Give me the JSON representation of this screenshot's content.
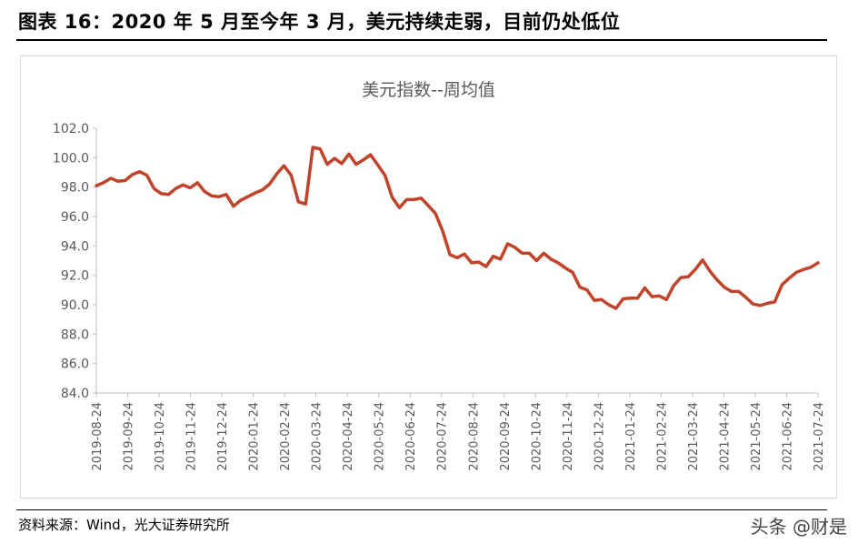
{
  "header": {
    "title": "图表 16：2020 年 5 月至今年 3 月，美元持续走弱，目前仍处低位"
  },
  "footer": {
    "source": "资料来源：Wind，光大证券研究所",
    "watermark": "头条 @财是"
  },
  "chart_data": {
    "type": "line",
    "title": "美元指数--周均值",
    "xlabel": "",
    "ylabel": "",
    "ylim": [
      84,
      102
    ],
    "y_ticks": [
      "84.0",
      "86.0",
      "88.0",
      "90.0",
      "92.0",
      "94.0",
      "96.0",
      "98.0",
      "100.0",
      "102.0"
    ],
    "x_ticks": [
      "2019-08-24",
      "2019-09-24",
      "2019-10-24",
      "2019-11-24",
      "2019-12-24",
      "2020-01-24",
      "2020-02-24",
      "2020-03-24",
      "2020-04-24",
      "2020-05-24",
      "2020-06-24",
      "2020-07-24",
      "2020-08-24",
      "2020-09-24",
      "2020-10-24",
      "2020-11-24",
      "2020-12-24",
      "2021-01-24",
      "2021-02-24",
      "2021-03-24",
      "2021-04-24",
      "2021-05-24",
      "2021-06-24",
      "2021-07-24"
    ],
    "grid": false,
    "legend": "none",
    "line_color": "#c0432a",
    "series": [
      {
        "values": [
          98.1,
          98.3,
          98.6,
          98.4,
          98.45,
          98.85,
          99.05,
          98.8,
          97.9,
          97.55,
          97.5,
          97.9,
          98.15,
          97.95,
          98.3,
          97.7,
          97.4,
          97.35,
          97.5,
          96.7,
          97.1,
          97.35,
          97.6,
          97.8,
          98.2,
          98.9,
          99.45,
          98.8,
          97.0,
          96.85,
          100.7,
          100.6,
          99.55,
          99.95,
          99.6,
          100.25,
          99.55,
          99.85,
          100.2,
          99.5,
          98.8,
          97.3,
          96.6,
          97.15,
          97.15,
          97.25,
          96.75,
          96.2,
          95.0,
          93.4,
          93.2,
          93.45,
          92.85,
          92.9,
          92.6,
          93.3,
          93.1,
          94.15,
          93.9,
          93.5,
          93.5,
          93.0,
          93.5,
          93.1,
          92.85,
          92.5,
          92.2,
          91.2,
          91.0,
          90.3,
          90.35,
          90.0,
          89.75,
          90.4,
          90.45,
          90.45,
          91.15,
          90.55,
          90.6,
          90.35,
          91.3,
          91.85,
          91.9,
          92.4,
          93.05,
          92.3,
          91.7,
          91.2,
          90.9,
          90.9,
          90.5,
          90.05,
          89.95,
          90.1,
          90.2,
          91.35,
          91.8,
          92.2,
          92.4,
          92.55,
          92.85
        ]
      }
    ]
  }
}
